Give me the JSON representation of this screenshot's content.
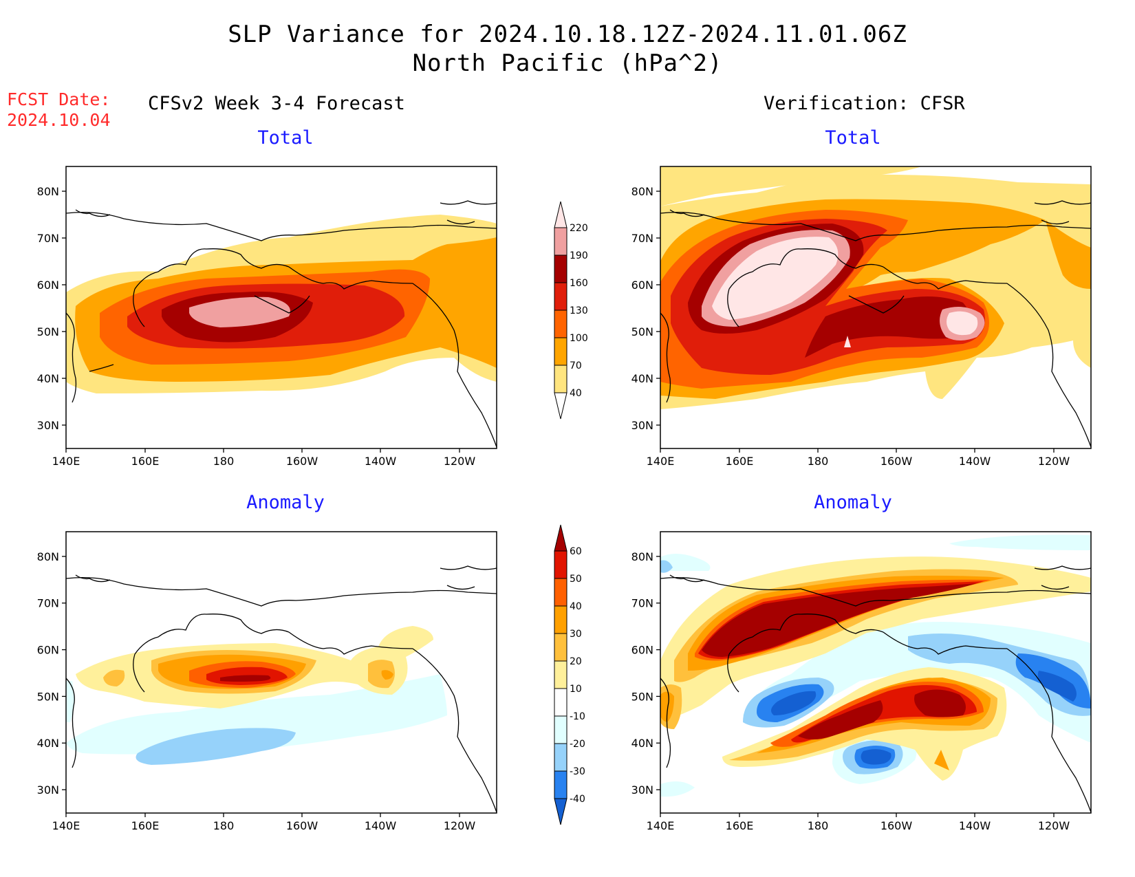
{
  "title": {
    "line1": "SLP Variance for 2024.10.18.12Z-2024.11.01.06Z",
    "line2": "North Pacific (hPa^2)"
  },
  "fcst": {
    "label": "FCST Date:",
    "date": "2024.10.04"
  },
  "columns": {
    "left": "CFSv2 Week 3-4 Forecast",
    "right": "Verification: CFSR"
  },
  "panel_titles": {
    "top_left": "Total",
    "top_right": "Total",
    "bottom_left": "Anomaly",
    "bottom_right": "Anomaly"
  },
  "axes": {
    "lat_labels": [
      "80N",
      "70N",
      "60N",
      "50N",
      "40N",
      "30N"
    ],
    "lon_labels": [
      "140E",
      "160E",
      "180",
      "160W",
      "140W",
      "120W"
    ]
  },
  "colorbars": {
    "total": {
      "levels": [
        "40",
        "70",
        "100",
        "130",
        "160",
        "190",
        "220"
      ],
      "colors": [
        "#ffe57f",
        "#ffa500",
        "#ff6400",
        "#e01e0a",
        "#a50000",
        "#f0a0a0",
        "#ffe6e6"
      ]
    },
    "anomaly": {
      "levels": [
        "-40",
        "-30",
        "-20",
        "-10",
        "10",
        "20",
        "30",
        "40",
        "50",
        "60"
      ],
      "colors": [
        "#1460d2",
        "#2882f0",
        "#96d2fa",
        "#e1ffff",
        "#ffffff",
        "#fff09b",
        "#ffc03c",
        "#ffa000",
        "#ff6000",
        "#e11400",
        "#a50000"
      ]
    }
  }
}
